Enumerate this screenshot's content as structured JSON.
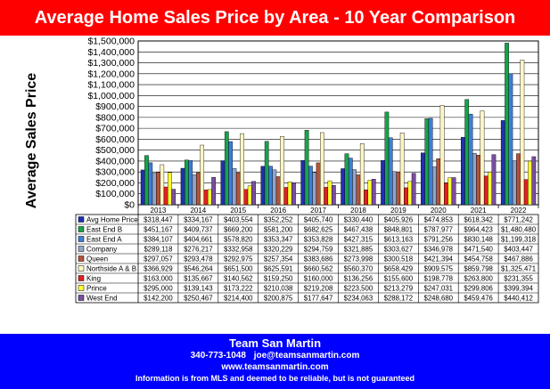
{
  "title": "Average Home Sales Price by Area - 10 Year Comparison",
  "footer": {
    "company": "Team San Martin",
    "phone": "340-773-1048",
    "email": "joe@teamsanmartin.com",
    "website": "www.teamsanmartin.com",
    "disclaimer": "Information is from MLS and deemed to be reliable, but is not guaranteed"
  },
  "colors": {
    "title_bg": "#ff0000",
    "footer_bg": "#0000ff",
    "plot_bg": "#ffffff"
  },
  "chart_data": {
    "type": "bar",
    "title": "",
    "xlabel": "",
    "ylabel": "Average Sales Price",
    "ylim": [
      0,
      1500000
    ],
    "y_ticks": [
      "$0",
      "$100,000",
      "$200,000",
      "$300,000",
      "$400,000",
      "$500,000",
      "$600,000",
      "$700,000",
      "$800,000",
      "$900,000",
      "$1,000,000",
      "$1,100,000",
      "$1,200,000",
      "$1,300,000",
      "$1,400,000",
      "$1,500,000"
    ],
    "grid": true,
    "legend_placement": "data table below chart",
    "categories": [
      "2013",
      "2014",
      "2015",
      "2016",
      "2017",
      "2018",
      "2019",
      "2020",
      "2021",
      "2022"
    ],
    "series": [
      {
        "name": "Avg Home Price",
        "color": "#1f2fb5",
        "values": [
          318447,
          334167,
          403554,
          352252,
          405740,
          330440,
          405926,
          474853,
          618342,
          771242
        ],
        "labels": [
          "$318,447",
          "$334,167",
          "$403,554",
          "$352,252",
          "$405,740",
          "$330,440",
          "$405,926",
          "$474,853",
          "$618,342",
          "$771,242"
        ]
      },
      {
        "name": "East End B",
        "color": "#17a34a",
        "values": [
          451167,
          409737,
          669200,
          581200,
          682625,
          467438,
          848801,
          787977,
          964423,
          1480480
        ],
        "labels": [
          "$451,167",
          "$409,737",
          "$669,200",
          "$581,200",
          "$682,625",
          "$467,438",
          "$848,801",
          "$787,977",
          "$964,423",
          "$1,480,480"
        ]
      },
      {
        "name": "East End A",
        "color": "#3b7fd9",
        "values": [
          384107,
          404661,
          578820,
          353347,
          353828,
          427315,
          613163,
          791256,
          830148,
          1199318
        ],
        "labels": [
          "$384,107",
          "$404,661",
          "$578,820",
          "$353,347",
          "$353,828",
          "$427,315",
          "$613,163",
          "$791,256",
          "$830,148",
          "$1,199,318"
        ]
      },
      {
        "name": "Company",
        "color": "#8fa5c8",
        "values": [
          289118,
          276217,
          332958,
          320229,
          294759,
          321885,
          303627,
          346978,
          471540,
          403447
        ],
        "labels": [
          "$289,118",
          "$276,217",
          "$332,958",
          "$320,229",
          "$294,759",
          "$321,885",
          "$303,627",
          "$346,978",
          "$471,540",
          "$403,447"
        ]
      },
      {
        "name": "Queen",
        "color": "#b5523a",
        "values": [
          297057,
          293478,
          292975,
          257354,
          383686,
          273998,
          300518,
          421394,
          454758,
          467886
        ],
        "labels": [
          "$297,057",
          "$293,478",
          "$292,975",
          "$257,354",
          "$383,686",
          "$273,998",
          "$300,518",
          "$421,394",
          "$454,758",
          "$467,886"
        ]
      },
      {
        "name": "Northside A & B",
        "color": "#fff6c2",
        "values": [
          366929,
          546264,
          651500,
          625591,
          660562,
          560370,
          658429,
          909575,
          859798,
          1325471
        ],
        "labels": [
          "$366,929",
          "$546,264",
          "$651,500",
          "$625,591",
          "$660,562",
          "$560,370",
          "$658,429",
          "$909,575",
          "$859,798",
          "$1,325,471"
        ]
      },
      {
        "name": "King",
        "color": "#e02020",
        "values": [
          163000,
          135667,
          140562,
          159250,
          160000,
          136256,
          155600,
          198778,
          263800,
          231355
        ],
        "labels": [
          "$163,000",
          "$135,667",
          "$140,562",
          "$159,250",
          "$160,000",
          "$136,256",
          "$155,600",
          "$198,778",
          "$263,800",
          "$231,355"
        ]
      },
      {
        "name": "Prince",
        "color": "#ffff33",
        "values": [
          295000,
          139143,
          173222,
          210038,
          219208,
          223500,
          213279,
          247031,
          299806,
          399394
        ],
        "labels": [
          "$295,000",
          "$139,143",
          "$173,222",
          "$210,038",
          "$219,208",
          "$223,500",
          "$213,279",
          "$247,031",
          "$299,806",
          "$399,394"
        ]
      },
      {
        "name": "West End",
        "color": "#7a4f9e",
        "values": [
          142200,
          250467,
          214400,
          200875,
          177647,
          234063,
          288172,
          248680,
          459476,
          440412
        ],
        "labels": [
          "$142,200",
          "$250,467",
          "$214,400",
          "$200,875",
          "$177,647",
          "$234,063",
          "$288,172",
          "$248,680",
          "$459,476",
          "$440,412"
        ]
      }
    ]
  }
}
